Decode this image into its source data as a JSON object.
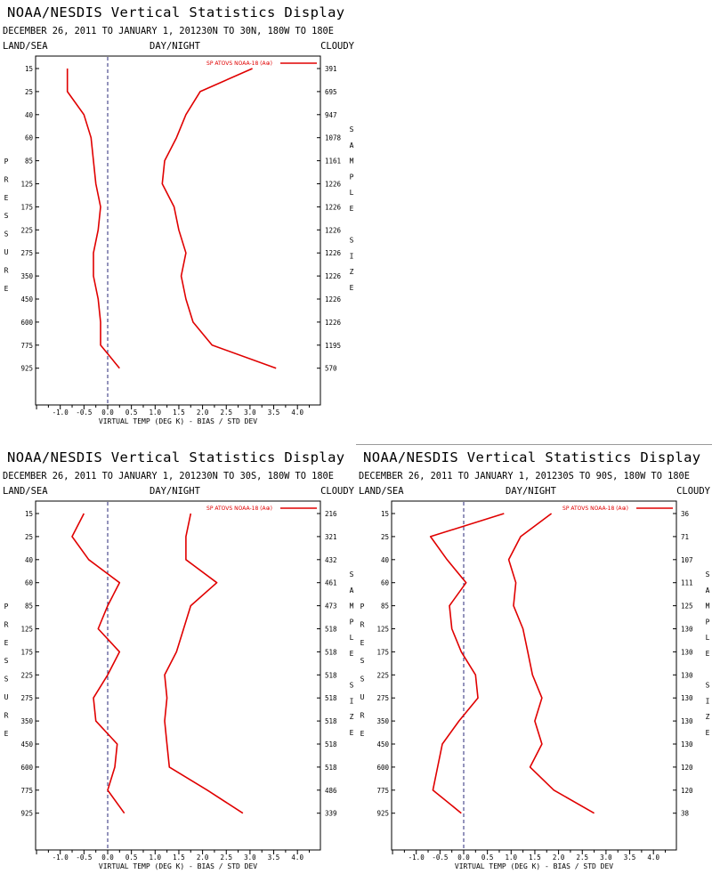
{
  "chart_data": [
    {
      "type": "line",
      "title": "NOAA/NESDIS Vertical Statistics Display",
      "subtitle": "DECEMBER 26, 2011 TO JANUARY 1, 201230N TO 30N, 180W TO 180E",
      "header_left": "LAND/SEA",
      "header_mid": "DAY/NIGHT",
      "header_right": "CLOUDY",
      "legend": "SP ATOVS NOAA-18 (A⊕)",
      "xlabel": "VIRTUAL TEMP (DEG K) - BIAS / STD DEV",
      "ylabel": "PRESSURE",
      "y2label": "SAMPLE SIZE",
      "xlim": [
        -1.5,
        4.5
      ],
      "xticks": [
        "-1.0",
        "-0.5",
        "0.0",
        "0.5",
        "1.0",
        "1.5",
        "2.0",
        "2.5",
        "3.0",
        "3.5",
        "4.0"
      ],
      "pressure_levels": [
        "15",
        "25",
        "40",
        "60",
        "85",
        "125",
        "175",
        "225",
        "275",
        "350",
        "450",
        "600",
        "775",
        "925"
      ],
      "sample_size": [
        "391",
        "695",
        "947",
        "1078",
        "1161",
        "1226",
        "1226",
        "1226",
        "1226",
        "1226",
        "1226",
        "1226",
        "1195",
        "570"
      ],
      "series": [
        {
          "name": "bias",
          "values": [
            -0.85,
            -0.85,
            -0.5,
            -0.35,
            -0.3,
            -0.25,
            -0.15,
            -0.2,
            -0.3,
            -0.3,
            -0.2,
            -0.15,
            -0.15,
            0.25
          ],
          "color": "#e00000"
        },
        {
          "name": "std dev",
          "values": [
            3.05,
            1.95,
            1.65,
            1.45,
            1.2,
            1.15,
            1.4,
            1.5,
            1.65,
            1.55,
            1.65,
            1.8,
            2.2,
            3.55
          ],
          "color": "#e00000"
        }
      ]
    },
    {
      "type": "line",
      "title": "NOAA/NESDIS Vertical Statistics Display",
      "subtitle": "DECEMBER 26, 2011 TO JANUARY 1, 201230N TO 30S, 180W TO 180E",
      "header_left": "LAND/SEA",
      "header_mid": "DAY/NIGHT",
      "header_right": "CLOUDY",
      "legend": "SP ATOVS NOAA-18 (A⊕)",
      "xlabel": "VIRTUAL TEMP (DEG K) - BIAS / STD DEV",
      "ylabel": "PRESSURE",
      "y2label": "SAMPLE SIZE",
      "xlim": [
        -1.5,
        4.5
      ],
      "xticks": [
        "-1.0",
        "-0.5",
        "0.0",
        "0.5",
        "1.0",
        "1.5",
        "2.0",
        "2.5",
        "3.0",
        "3.5",
        "4.0"
      ],
      "pressure_levels": [
        "15",
        "25",
        "40",
        "60",
        "85",
        "125",
        "175",
        "225",
        "275",
        "350",
        "450",
        "600",
        "775",
        "925"
      ],
      "sample_size": [
        "216",
        "321",
        "432",
        "461",
        "473",
        "518",
        "518",
        "518",
        "518",
        "518",
        "518",
        "518",
        "486",
        "339"
      ],
      "series": [
        {
          "name": "bias",
          "values": [
            -0.5,
            -0.75,
            -0.4,
            0.25,
            0.0,
            -0.2,
            0.25,
            0.0,
            -0.3,
            -0.25,
            0.2,
            0.15,
            0.0,
            0.35
          ],
          "color": "#e00000"
        },
        {
          "name": "std dev",
          "values": [
            1.75,
            1.65,
            1.65,
            2.3,
            1.75,
            1.6,
            1.45,
            1.2,
            1.25,
            1.2,
            1.25,
            1.3,
            2.1,
            2.85
          ],
          "color": "#e00000"
        }
      ]
    },
    {
      "type": "line",
      "title": "NOAA/NESDIS Vertical Statistics Display",
      "subtitle": "DECEMBER 26, 2011 TO JANUARY 1, 201230S TO 90S, 180W TO 180E",
      "header_left": "LAND/SEA",
      "header_mid": "DAY/NIGHT",
      "header_right": "CLOUDY",
      "legend": "SP ATOVS NOAA-18 (A⊕)",
      "xlabel": "VIRTUAL TEMP (DEG K) - BIAS / STD DEV",
      "ylabel": "PRESSURE",
      "y2label": "SAMPLE SIZE",
      "xlim": [
        -1.5,
        4.5
      ],
      "xticks": [
        "-1.0",
        "-0.5",
        "0.0",
        "0.5",
        "1.0",
        "1.5",
        "2.0",
        "2.5",
        "3.0",
        "3.5",
        "4.0"
      ],
      "pressure_levels": [
        "15",
        "25",
        "40",
        "60",
        "85",
        "125",
        "175",
        "225",
        "275",
        "350",
        "450",
        "600",
        "775",
        "925"
      ],
      "sample_size": [
        "36",
        "71",
        "107",
        "111",
        "125",
        "130",
        "130",
        "130",
        "130",
        "130",
        "130",
        "120",
        "120",
        "38"
      ],
      "series": [
        {
          "name": "bias",
          "values": [
            0.85,
            -0.7,
            -0.35,
            0.05,
            -0.3,
            -0.25,
            -0.05,
            0.25,
            0.3,
            -0.1,
            -0.45,
            -0.55,
            -0.65,
            -0.05
          ],
          "color": "#e00000"
        },
        {
          "name": "std dev",
          "values": [
            1.85,
            1.2,
            0.95,
            1.1,
            1.05,
            1.25,
            1.35,
            1.45,
            1.65,
            1.5,
            1.65,
            1.4,
            1.9,
            2.75
          ],
          "color": "#e00000"
        }
      ]
    }
  ]
}
